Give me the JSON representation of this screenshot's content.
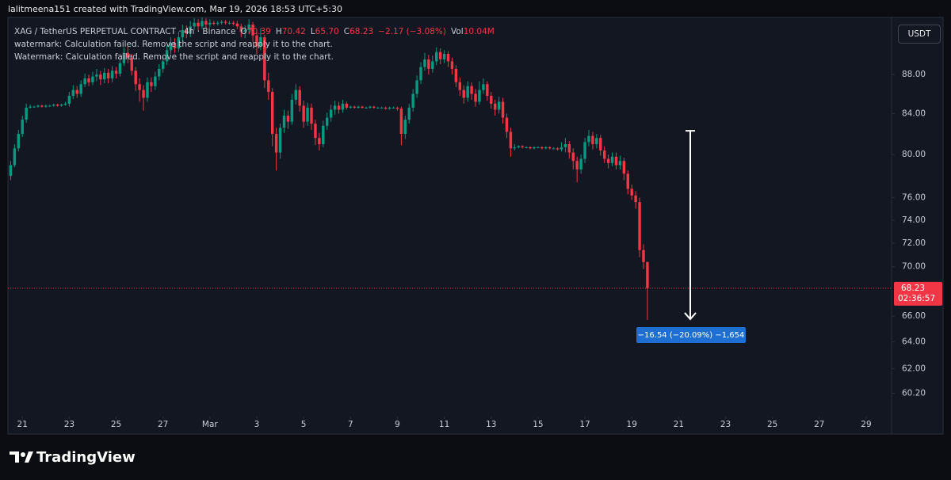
{
  "header": "lalitmeena151 created with TradingView.com, Mar 19, 2026 18:53 UTC+5:30",
  "chart_data": {
    "type": "candlestick",
    "title": "XAG / TetherUS PERPETUAL CONTRACT · 4h · Binance",
    "legend": [
      {
        "key": "O",
        "value": "70.39"
      },
      {
        "key": "H",
        "value": "70.42"
      },
      {
        "key": "L",
        "value": "65.70"
      },
      {
        "key": "C",
        "value": "68.23"
      },
      {
        "value": "−2.17 (−3.08%)"
      },
      {
        "key": "Vol",
        "value": "10.04M"
      }
    ],
    "indicator_messages": [
      "watermark: Calculation failed. Remove the script and reapply it to the chart.",
      "Watermark: Calculation failed. Remove the script and reapply it to the chart."
    ],
    "currency": "USDT",
    "countdown": "02:36:57",
    "up_color": "#089981",
    "down_color": "#f23645",
    "log_scale": true,
    "xlim": [
      -0.7,
      225.5
    ],
    "xticks": [
      {
        "value": 3,
        "label": "21"
      },
      {
        "value": 15,
        "label": "23"
      },
      {
        "value": 27,
        "label": "25"
      },
      {
        "value": 39,
        "label": "27"
      },
      {
        "value": 51,
        "label": "Mar"
      },
      {
        "value": 63,
        "label": "3"
      },
      {
        "value": 75,
        "label": "5"
      },
      {
        "value": 87,
        "label": "7"
      },
      {
        "value": 99,
        "label": "9"
      },
      {
        "value": 111,
        "label": "11"
      },
      {
        "value": 123,
        "label": "13"
      },
      {
        "value": 135,
        "label": "15"
      },
      {
        "value": 147,
        "label": "17"
      },
      {
        "value": 159,
        "label": "19"
      },
      {
        "value": 171,
        "label": "21"
      },
      {
        "value": 183,
        "label": "23"
      },
      {
        "value": 195,
        "label": "25"
      },
      {
        "value": 207,
        "label": "27"
      },
      {
        "value": 219,
        "label": "29"
      }
    ],
    "ylim": [
      57.35,
      94.2
    ],
    "yticks": [
      {
        "value": 60.2,
        "label": "60.20"
      },
      {
        "value": 62,
        "label": "62.00"
      },
      {
        "value": 64,
        "label": "64.00"
      },
      {
        "value": 66,
        "label": "66.00"
      },
      {
        "value": 70,
        "label": "70.00"
      },
      {
        "value": 72,
        "label": "72.00"
      },
      {
        "value": 74,
        "label": "74.00"
      },
      {
        "value": 76,
        "label": "76.00"
      },
      {
        "value": 80,
        "label": "80.00"
      },
      {
        "value": 84,
        "label": "84.00"
      },
      {
        "value": 88,
        "label": "88.00"
      }
    ],
    "open": [
      78.0,
      79.0,
      80.6,
      82.0,
      83.4,
      84.6,
      84.7,
      84.7,
      84.8,
      84.7,
      84.8,
      84.8,
      84.9,
      84.8,
      84.9,
      85.0,
      85.8,
      86.4,
      86.0,
      87.0,
      87.6,
      87.2,
      87.8,
      88.0,
      87.5,
      88.2,
      87.6,
      88.4,
      88.1,
      89.2,
      90.3,
      89.8,
      88.4,
      87.0,
      86.4,
      85.6,
      87.2,
      86.8,
      87.8,
      88.6,
      89.4,
      90.6,
      91.4,
      90.8,
      92.0,
      92.8,
      92.4,
      93.2,
      93.6,
      93.2,
      93.8,
      93.4,
      93.6,
      93.5,
      93.6,
      93.7,
      93.6,
      93.6,
      93.5,
      93.2,
      92.6,
      92.8,
      93.4,
      92.2,
      91.0,
      92.0,
      87.4,
      86.2,
      82.0,
      80.2,
      82.6,
      83.8,
      83.2,
      85.4,
      86.4,
      84.8,
      83.2,
      84.6,
      83.0,
      81.6,
      81.0,
      82.8,
      83.6,
      84.4,
      84.8,
      84.4,
      85.0,
      84.6,
      84.7,
      84.6,
      84.7,
      84.6,
      84.6,
      84.7,
      84.6,
      84.6,
      84.6,
      84.5,
      84.6,
      84.6,
      84.5,
      82.0,
      83.4,
      84.6,
      86.0,
      87.4,
      88.8,
      89.6,
      88.6,
      89.4,
      90.4,
      89.6,
      90.2,
      89.4,
      88.6,
      87.2,
      86.4,
      85.6,
      86.8,
      86.0,
      85.2,
      86.4,
      87.0,
      85.8,
      85.0,
      84.4,
      85.2,
      83.6,
      82.2,
      80.6,
      80.7,
      80.8,
      80.7,
      80.7,
      80.6,
      80.7,
      80.7,
      80.6,
      80.7,
      80.6,
      80.6,
      80.5,
      80.7,
      81.0,
      80.2,
      79.4,
      78.6,
      79.6,
      81.2,
      81.8,
      81.0,
      81.6,
      80.4,
      79.6,
      79.2,
      79.8,
      79.0,
      79.4,
      78.2,
      76.8,
      76.2,
      75.6,
      71.4,
      70.39
    ],
    "high": [
      79.4,
      81.0,
      82.4,
      83.8,
      85.0,
      84.9,
      84.8,
      84.9,
      84.9,
      84.9,
      84.9,
      85.0,
      85.0,
      85.0,
      85.2,
      86.2,
      86.9,
      86.8,
      87.4,
      88.1,
      88.0,
      88.3,
      88.6,
      88.4,
      88.7,
      88.6,
      88.9,
      88.8,
      89.7,
      90.9,
      91.0,
      90.2,
      88.8,
      87.6,
      86.9,
      87.7,
      87.7,
      88.3,
      89.1,
      89.9,
      91.1,
      92.0,
      91.9,
      92.6,
      93.4,
      93.3,
      93.8,
      94.1,
      94.0,
      94.2,
      94.1,
      94.0,
      93.8,
      93.8,
      93.9,
      93.9,
      93.8,
      93.8,
      93.8,
      93.5,
      93.3,
      94.0,
      93.7,
      92.6,
      93.0,
      92.3,
      88.2,
      86.6,
      82.6,
      83.0,
      84.4,
      84.3,
      86.0,
      87.0,
      86.8,
      85.3,
      85.1,
      85.0,
      83.4,
      82.1,
      83.3,
      84.1,
      84.9,
      85.3,
      85.2,
      85.4,
      85.2,
      84.8,
      84.8,
      84.8,
      84.8,
      84.7,
      84.8,
      84.8,
      84.7,
      84.7,
      84.7,
      84.7,
      84.7,
      84.7,
      84.7,
      83.8,
      85.0,
      86.5,
      87.9,
      89.3,
      90.3,
      90.1,
      90.0,
      90.9,
      90.8,
      90.6,
      90.5,
      89.8,
      89.0,
      87.7,
      86.9,
      87.3,
      87.2,
      86.5,
      87.3,
      87.6,
      87.3,
      86.2,
      85.4,
      85.7,
      85.6,
      84.0,
      82.6,
      81.0,
      80.9,
      80.9,
      80.8,
      80.8,
      80.8,
      80.8,
      80.8,
      80.8,
      80.8,
      80.7,
      80.7,
      81.2,
      81.6,
      81.3,
      80.6,
      79.8,
      80.0,
      81.6,
      82.4,
      82.2,
      82.0,
      81.9,
      80.8,
      80.0,
      80.2,
      80.2,
      79.9,
      79.7,
      78.5,
      77.2,
      76.6,
      76.0,
      71.9,
      70.42
    ],
    "low": [
      77.6,
      78.8,
      80.3,
      81.7,
      83.1,
      84.5,
      84.6,
      84.6,
      84.6,
      84.6,
      84.7,
      84.7,
      84.7,
      84.7,
      84.8,
      84.7,
      85.5,
      85.6,
      85.7,
      86.7,
      86.8,
      86.9,
      87.3,
      86.9,
      87.1,
      87.1,
      87.2,
      87.6,
      87.8,
      88.9,
      89.2,
      87.9,
      86.3,
      85.2,
      84.3,
      85.2,
      86.2,
      86.4,
      87.4,
      88.2,
      89.0,
      90.2,
      90.3,
      90.4,
      91.6,
      91.9,
      92.0,
      92.8,
      92.7,
      92.9,
      93.0,
      93.1,
      93.3,
      93.3,
      93.4,
      93.4,
      93.4,
      93.3,
      92.9,
      92.0,
      91.9,
      92.4,
      91.5,
      90.2,
      90.6,
      86.6,
      85.4,
      80.8,
      78.5,
      79.6,
      82.1,
      82.5,
      82.9,
      84.9,
      84.2,
      82.6,
      82.8,
      82.4,
      80.9,
      80.4,
      80.7,
      82.4,
      83.2,
      83.9,
      84.0,
      84.1,
      84.4,
      84.5,
      84.5,
      84.5,
      84.5,
      84.5,
      84.5,
      84.5,
      84.5,
      84.5,
      84.4,
      84.4,
      84.5,
      84.3,
      80.9,
      81.5,
      83.0,
      84.2,
      85.6,
      87.0,
      88.4,
      88.0,
      88.2,
      89.0,
      89.1,
      89.2,
      88.8,
      88.0,
      86.7,
      85.8,
      85.0,
      85.2,
      85.4,
      84.7,
      84.9,
      86.0,
      85.3,
      84.5,
      83.8,
      84.0,
      83.0,
      81.6,
      79.8,
      80.4,
      80.6,
      80.6,
      80.6,
      80.5,
      80.5,
      80.6,
      80.5,
      80.5,
      80.5,
      80.5,
      80.4,
      80.3,
      80.2,
      79.6,
      78.6,
      77.4,
      78.2,
      79.2,
      80.8,
      80.5,
      80.6,
      79.9,
      79.2,
      78.7,
      78.9,
      78.6,
      78.6,
      77.6,
      76.3,
      75.8,
      75.0,
      70.8,
      69.8,
      65.7
    ],
    "close": [
      79.0,
      80.6,
      82.0,
      83.4,
      84.6,
      84.7,
      84.7,
      84.8,
      84.7,
      84.8,
      84.8,
      84.9,
      84.8,
      84.9,
      85.0,
      85.8,
      86.4,
      86.0,
      87.0,
      87.6,
      87.2,
      87.8,
      88.0,
      87.5,
      88.2,
      87.6,
      88.4,
      88.1,
      89.2,
      90.3,
      89.8,
      88.4,
      87.0,
      86.4,
      85.6,
      87.2,
      86.8,
      87.8,
      88.6,
      89.4,
      90.6,
      91.4,
      90.8,
      92.0,
      92.8,
      92.4,
      93.2,
      93.6,
      93.2,
      93.8,
      93.4,
      93.6,
      93.5,
      93.6,
      93.7,
      93.6,
      93.6,
      93.5,
      93.2,
      92.6,
      92.8,
      93.4,
      92.2,
      91.0,
      92.0,
      87.4,
      86.2,
      82.0,
      80.2,
      82.6,
      83.8,
      83.2,
      85.4,
      86.4,
      84.8,
      83.2,
      84.6,
      83.0,
      81.6,
      81.0,
      82.8,
      83.6,
      84.4,
      84.8,
      84.4,
      85.0,
      84.6,
      84.7,
      84.6,
      84.7,
      84.6,
      84.6,
      84.7,
      84.6,
      84.6,
      84.6,
      84.5,
      84.6,
      84.6,
      84.5,
      82.0,
      83.4,
      84.6,
      86.0,
      87.4,
      88.8,
      89.6,
      88.6,
      89.4,
      90.4,
      89.6,
      90.2,
      89.4,
      88.6,
      87.2,
      86.4,
      85.6,
      86.8,
      86.0,
      85.2,
      86.4,
      87.0,
      85.8,
      85.0,
      84.4,
      85.2,
      83.6,
      82.2,
      80.6,
      80.7,
      80.8,
      80.7,
      80.7,
      80.6,
      80.7,
      80.7,
      80.6,
      80.7,
      80.6,
      80.6,
      80.5,
      80.7,
      81.0,
      80.2,
      79.4,
      78.6,
      79.6,
      81.2,
      81.8,
      81.0,
      81.6,
      80.4,
      79.6,
      79.2,
      79.8,
      79.0,
      79.4,
      78.2,
      76.8,
      76.2,
      75.6,
      71.4,
      70.39,
      68.23
    ],
    "measure": {
      "from": 82.3,
      "to": 65.76,
      "label": "−16.54 (−20.09%) −1,654"
    }
  },
  "brand": "TradingView"
}
